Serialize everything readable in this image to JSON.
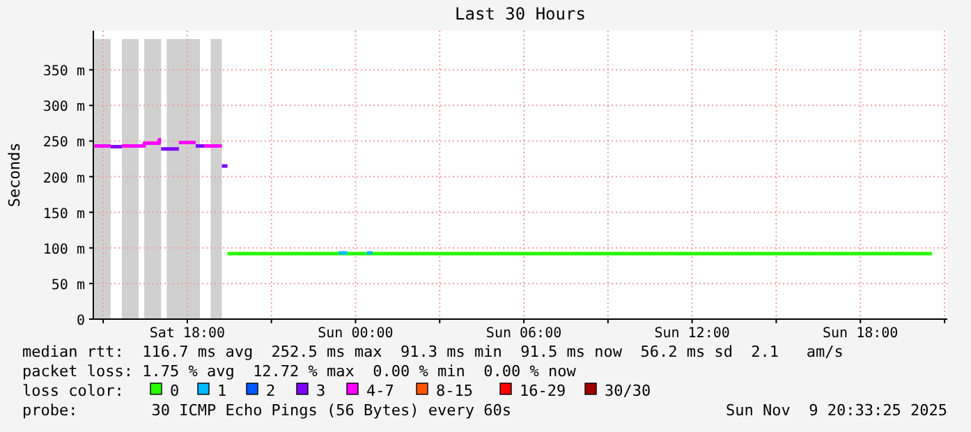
{
  "chart_data": {
    "type": "step",
    "title": "Last 30 Hours",
    "ylabel": "Seconds",
    "legend_title": "loss color:",
    "legend": "bottom",
    "grid": true,
    "line_style": "solid",
    "marker": "none",
    "xlim": [
      "2025-11-08T14:39",
      "2025-11-09T21:06"
    ],
    "ylim": [
      0,
      405
    ],
    "xticks": [
      {
        "value": "2025-11-08T15:00",
        "label": null
      },
      {
        "value": "2025-11-08T18:00",
        "label": "Sat 18:00"
      },
      {
        "value": "2025-11-08T21:00",
        "label": null
      },
      {
        "value": "2025-11-09T00:00",
        "label": "Sun 00:00"
      },
      {
        "value": "2025-11-09T03:00",
        "label": null
      },
      {
        "value": "2025-11-09T06:00",
        "label": "Sun 06:00"
      },
      {
        "value": "2025-11-09T09:00",
        "label": null
      },
      {
        "value": "2025-11-09T12:00",
        "label": "Sun 12:00"
      },
      {
        "value": "2025-11-09T15:00",
        "label": null
      },
      {
        "value": "2025-11-09T18:00",
        "label": "Sun 18:00"
      },
      {
        "value": "2025-11-09T21:00",
        "label": null
      }
    ],
    "yticks": [
      0,
      {
        "value": 50,
        "label": "50 m"
      },
      {
        "value": 100,
        "label": "100 m"
      },
      {
        "value": 150,
        "label": "150 m"
      },
      {
        "value": 200,
        "label": "200 m"
      },
      {
        "value": 250,
        "label": "250 m"
      },
      {
        "value": 300,
        "label": "300 m"
      },
      {
        "value": 350,
        "label": "350 m"
      }
    ],
    "bands": [
      {
        "axis": "x",
        "from": "2025-11-08T14:41",
        "to": "2025-11-08T15:16",
        "color": "#d0d0d0"
      },
      {
        "axis": "x",
        "from": "2025-11-08T15:40",
        "to": "2025-11-08T16:16",
        "color": "#d0d0d0"
      },
      {
        "axis": "x",
        "from": "2025-11-08T16:28",
        "to": "2025-11-08T17:04",
        "color": "#d0d0d0"
      },
      {
        "axis": "x",
        "from": "2025-11-08T17:16",
        "to": "2025-11-08T18:27",
        "color": "#d0d0d0"
      },
      {
        "axis": "x",
        "from": "2025-11-08T18:50",
        "to": "2025-11-08T19:14",
        "color": "#d0d0d0"
      }
    ],
    "series": [
      {
        "name": "0",
        "color": "#26ff00",
        "x": [
          "2025-11-08T19:26",
          "2025-11-08T22:00",
          "2025-11-09T00:00",
          "2025-11-09T02:00",
          "2025-11-09T06:00",
          "2025-11-09T10:00",
          "2025-11-09T14:00",
          "2025-11-09T18:00",
          "2025-11-09T20:33"
        ],
        "values": [
          92,
          92,
          92,
          92,
          92,
          92,
          92,
          92,
          92
        ]
      },
      {
        "name": "1",
        "color": "#00b8ff",
        "x": [
          "2025-11-08T23:24",
          "2025-11-08T23:42",
          "2025-11-08T23:50",
          "2025-11-09T00:24",
          "2025-11-09T00:36"
        ],
        "values": [
          93,
          93,
          null,
          93,
          93
        ]
      },
      {
        "name": "2",
        "color": "#0059ff"
      },
      {
        "name": "3",
        "color": "#7e00ff",
        "x": [
          "2025-11-08T15:16",
          "2025-11-08T15:40",
          "2025-11-08T16:00",
          "2025-11-08T17:04",
          "2025-11-08T17:42",
          "2025-11-08T18:00",
          "2025-11-08T18:18",
          "2025-11-08T18:36",
          "2025-11-08T18:50",
          "2025-11-08T19:14",
          "2025-11-08T19:26"
        ],
        "values": [
          242,
          242,
          null,
          239,
          239,
          null,
          243,
          243,
          null,
          215,
          215
        ]
      },
      {
        "name": "4-7",
        "color": "#ff00fe",
        "x": [
          "2025-11-08T14:41",
          "2025-11-08T15:16",
          "2025-11-08T15:25",
          "2025-11-08T15:40",
          "2025-11-08T16:28",
          "2025-11-08T17:00",
          "2025-11-08T17:04",
          "2025-11-08T17:30",
          "2025-11-08T17:42",
          "2025-11-08T18:18",
          "2025-11-08T18:27",
          "2025-11-08T18:36",
          "2025-11-08T19:14"
        ],
        "values": [
          243,
          243,
          null,
          243,
          247,
          252,
          252,
          null,
          248,
          248,
          null,
          243,
          243
        ]
      },
      {
        "name": "8-15",
        "color": "#ff5500"
      },
      {
        "name": "16-29",
        "color": "#ff0000"
      },
      {
        "name": "30/30",
        "color": "#a10000"
      }
    ],
    "annotations": [
      "median rtt:  116.7 ms avg  252.5 ms max  91.3 ms min  91.5 ms now  56.2 ms sd  2.1   am/s",
      "packet loss: 1.75 % avg  12.72 % max  0.00 % min  0.00 % now",
      "probe:        30 ICMP Echo Pings (56 Bytes) every 60s",
      "Sun Nov  9 20:33:25 2025"
    ]
  }
}
